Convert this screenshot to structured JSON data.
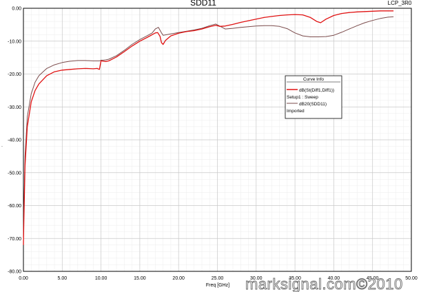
{
  "chart_data": {
    "type": "line",
    "title": "SDD11",
    "corner_label": "LCP_3R0",
    "xlabel": "Freq [GHz]",
    "ylabel": "",
    "xlim": [
      0,
      50
    ],
    "ylim": [
      -80,
      0
    ],
    "grid": true,
    "x_ticks": [
      "0.00",
      "5.00",
      "10.00",
      "15.00",
      "20.00",
      "25.00",
      "30.00",
      "35.00",
      "40.00",
      "45.00",
      "50.00"
    ],
    "y_ticks": [
      "0.00",
      "-10.00",
      "-20.00",
      "-30.00",
      "-40.00",
      "-50.00",
      "-60.00",
      "-70.00",
      "-80.00"
    ],
    "series": [
      {
        "name": "dB(St(Diff1,Diff1))",
        "setup": "Setup1 : Sweep",
        "color": "#e01010",
        "x": [
          0.0,
          0.05,
          0.2,
          0.5,
          1.0,
          1.5,
          2.0,
          3.0,
          4.0,
          5.0,
          6.0,
          7.0,
          8.0,
          9.0,
          9.5,
          9.8,
          10.0,
          10.3,
          10.6,
          11.0,
          12.0,
          13.0,
          14.0,
          15.0,
          16.0,
          17.0,
          17.3,
          17.6,
          17.8,
          18.0,
          18.3,
          19.0,
          20.0,
          21.0,
          22.0,
          23.0,
          24.0,
          24.8,
          25.3,
          26.0,
          27.0,
          28.0,
          29.0,
          30.0,
          31.0,
          32.0,
          33.0,
          34.0,
          35.0,
          36.0,
          37.0,
          37.8,
          38.3,
          39.0,
          40.0,
          41.0,
          42.0,
          43.0,
          44.0,
          45.0,
          46.0,
          47.0,
          47.7
        ],
        "y": [
          -72,
          -65,
          -48,
          -36,
          -28.5,
          -25,
          -23,
          -20.5,
          -19.3,
          -18.8,
          -18.6,
          -18.4,
          -18.3,
          -18.4,
          -18.3,
          -18.6,
          -16.0,
          -16.1,
          -16.2,
          -16.0,
          -14.8,
          -13.2,
          -11.5,
          -10.0,
          -8.8,
          -7.5,
          -7.4,
          -8.5,
          -10.5,
          -11.0,
          -9.8,
          -8.4,
          -7.6,
          -7.1,
          -6.8,
          -6.3,
          -5.6,
          -5.2,
          -5.5,
          -5.4,
          -4.9,
          -4.3,
          -3.8,
          -3.3,
          -2.8,
          -2.5,
          -2.2,
          -2.0,
          -1.9,
          -2.0,
          -2.8,
          -4.0,
          -4.4,
          -3.3,
          -2.2,
          -1.6,
          -1.3,
          -1.1,
          -1.0,
          -0.9,
          -0.8,
          -0.8,
          -0.8
        ]
      },
      {
        "name": "dB20(SDD11)",
        "setup": "Imported",
        "color": "#7a4a4a",
        "x": [
          0.0,
          0.05,
          0.2,
          0.5,
          1.0,
          1.5,
          2.0,
          3.0,
          4.0,
          5.0,
          6.0,
          7.0,
          8.0,
          9.0,
          9.5,
          9.8,
          10.0,
          10.3,
          10.6,
          11.0,
          12.0,
          13.0,
          14.0,
          15.0,
          16.0,
          16.6,
          17.0,
          17.4,
          17.8,
          18.0,
          18.5,
          19.0,
          20.0,
          21.0,
          22.0,
          23.0,
          24.0,
          24.8,
          25.3,
          26.0,
          27.0,
          28.0,
          29.0,
          30.0,
          31.0,
          32.0,
          33.0,
          34.0,
          35.0,
          36.0,
          37.0,
          38.0,
          39.0,
          40.0,
          41.0,
          42.0,
          43.0,
          44.0,
          45.0,
          46.0,
          47.0,
          47.7
        ],
        "y": [
          -70,
          -62,
          -45,
          -33,
          -26,
          -22.5,
          -20.5,
          -18.3,
          -17.2,
          -16.5,
          -16.1,
          -15.9,
          -15.9,
          -16.0,
          -16.0,
          -16.0,
          -15.8,
          -15.8,
          -15.7,
          -15.5,
          -14.4,
          -12.8,
          -11.0,
          -9.5,
          -8.3,
          -7.5,
          -6.3,
          -5.8,
          -7.5,
          -8.2,
          -8.0,
          -7.8,
          -7.4,
          -7.0,
          -6.6,
          -6.1,
          -5.3,
          -4.8,
          -5.4,
          -6.3,
          -6.1,
          -5.8,
          -5.6,
          -5.4,
          -5.3,
          -5.3,
          -5.5,
          -6.2,
          -7.5,
          -8.4,
          -8.7,
          -8.7,
          -8.6,
          -8.2,
          -7.3,
          -6.3,
          -5.3,
          -4.4,
          -3.7,
          -3.1,
          -2.7,
          -2.6
        ]
      }
    ]
  },
  "legend": {
    "title": "Curve Info",
    "entries": [
      {
        "name": "dB(St(Diff1,Diff1))",
        "sub": "Setup1 : Sweep"
      },
      {
        "name": "dB20(SDD11)",
        "sub": "Imported"
      }
    ]
  },
  "watermark": "marksignal.com©2010"
}
